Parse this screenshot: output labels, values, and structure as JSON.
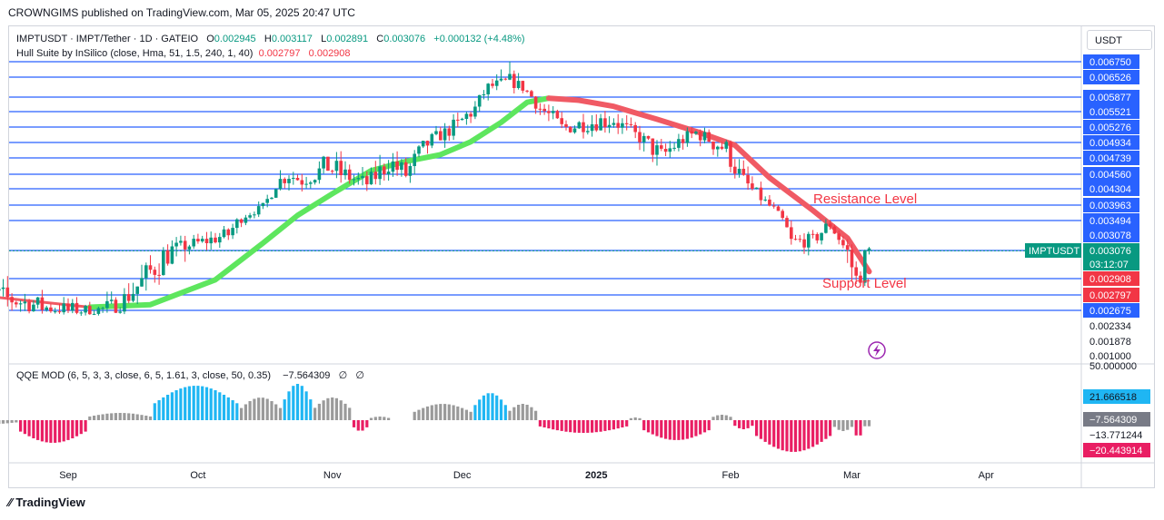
{
  "header": "CROWNGIMS published on TradingView.com, Mar 05, 2025 20:47 UTC",
  "legend": {
    "symbol": "IMPTUSDT · IMPT/Tether · 1D · GATEIO",
    "open_label": "O",
    "open": "0.002945",
    "high_label": "H",
    "high": "0.003117",
    "low_label": "L",
    "low": "0.002891",
    "close_label": "C",
    "close": "0.003076",
    "change": "+0.000132 (+4.48%)",
    "indicator": "Hull Suite by InSilico (close, Hma, 51, 1.5, 240, 1, 40)",
    "ind_val1": "0.002797",
    "ind_val2": "0.002908"
  },
  "qqe_legend": {
    "name": "QQE MOD (6, 5, 3, 3, close, 6, 5, 1.61, 3, close, 50, 0.35)",
    "value": "−7.564309",
    "extra1": "∅",
    "extra2": "∅"
  },
  "currency": "USDT",
  "footer": "TradingView",
  "colors": {
    "up": "#089981",
    "down": "#f23645",
    "level_line": "#2962ff",
    "hull_up": "#5ee65e",
    "hull_down": "#f05a64",
    "qqe_blue": "#1fb6f3",
    "qqe_gray": "#9a9a9a",
    "qqe_red": "#e91e63"
  },
  "chart_data": [
    {
      "type": "candlestick",
      "x_labels": [
        "Sep",
        "Oct",
        "Nov",
        "Dec",
        "2025",
        "Feb",
        "Mar",
        "Apr"
      ],
      "price_axis": [
        "0.006750",
        "0.006526",
        "0.005877",
        "0.005521",
        "0.005276",
        "0.004934",
        "0.004739",
        "0.004560",
        "0.004304",
        "0.003963",
        "0.003494",
        "0.003078",
        "0.003076",
        "0.002908",
        "0.002797",
        "0.002675",
        "0.002334",
        "0.001878",
        "0.001000"
      ],
      "horizontal_levels": [
        0.00675,
        0.006526,
        0.005877,
        0.005521,
        0.005276,
        0.004934,
        0.004739,
        0.00456,
        0.004304,
        0.003963,
        0.003494,
        0.003078,
        0.002908,
        0.002797,
        0.002675
      ],
      "annotations": [
        "Resistance Level",
        "Support Level"
      ],
      "last_price_tag": {
        "symbol": "IMPTUSDT",
        "price": "0.003076",
        "countdown": "03:12:07"
      },
      "indicator_tags": [
        "0.002908",
        "0.002797"
      ],
      "close_path": [
        [
          "2024-08-09",
          0.00285
        ],
        [
          "2024-08-20",
          0.00275
        ],
        [
          "2024-08-29",
          0.00268
        ],
        [
          "2024-09-05",
          0.00265
        ],
        [
          "2024-09-12",
          0.0027
        ],
        [
          "2024-09-20",
          0.00295
        ],
        [
          "2024-09-25",
          0.0031
        ],
        [
          "2024-10-01",
          0.00318
        ],
        [
          "2024-10-08",
          0.0033
        ],
        [
          "2024-10-12",
          0.00365
        ],
        [
          "2024-10-16",
          0.0039
        ],
        [
          "2024-10-19",
          0.0044
        ],
        [
          "2024-10-22",
          0.00455
        ],
        [
          "2024-10-25",
          0.00445
        ],
        [
          "2024-10-31",
          0.00465
        ],
        [
          "2024-11-05",
          0.0045
        ],
        [
          "2024-11-09",
          0.0044
        ],
        [
          "2024-11-14",
          0.0047
        ],
        [
          "2024-11-18",
          0.00455
        ],
        [
          "2024-11-24",
          0.005
        ],
        [
          "2024-11-30",
          0.0053
        ],
        [
          "2024-12-04",
          0.0056
        ],
        [
          "2024-12-07",
          0.0062
        ],
        [
          "2024-12-12",
          0.0064
        ],
        [
          "2024-12-15",
          0.0062
        ],
        [
          "2024-12-19",
          0.0056
        ],
        [
          "2024-12-24",
          0.00525
        ],
        [
          "2024-12-31",
          0.00535
        ],
        [
          "2025-01-05",
          0.0054
        ],
        [
          "2025-01-10",
          0.0051
        ],
        [
          "2025-01-16",
          0.00475
        ],
        [
          "2025-01-20",
          0.00495
        ],
        [
          "2025-01-24",
          0.00515
        ],
        [
          "2025-01-28",
          0.00495
        ],
        [
          "2025-01-31",
          0.00485
        ],
        [
          "2025-02-04",
          0.00445
        ],
        [
          "2025-02-07",
          0.0042
        ],
        [
          "2025-02-11",
          0.00385
        ],
        [
          "2025-02-15",
          0.0032
        ],
        [
          "2025-02-20",
          0.00322
        ],
        [
          "2025-02-24",
          0.00345
        ],
        [
          "2025-02-27",
          0.00315
        ],
        [
          "2025-03-02",
          0.0029
        ],
        [
          "2025-03-05",
          0.003076
        ]
      ],
      "hull_suite": {
        "up_segment": [
          [
            "2024-09-06",
            0.0027
          ],
          [
            "2024-09-20",
            0.00272
          ],
          [
            "2024-10-05",
            0.0029
          ],
          [
            "2024-10-16",
            0.00318
          ],
          [
            "2024-10-24",
            0.00365
          ],
          [
            "2024-11-01",
            0.0042
          ],
          [
            "2024-11-10",
            0.0046
          ],
          [
            "2024-11-18",
            0.0047
          ],
          [
            "2024-11-26",
            0.00478
          ],
          [
            "2024-12-03",
            0.00495
          ],
          [
            "2024-12-10",
            0.00535
          ],
          [
            "2024-12-16",
            0.00575
          ],
          [
            "2024-12-21",
            0.00585
          ]
        ],
        "down_segment": [
          [
            "2024-08-02",
            0.00282
          ],
          [
            "2024-08-15",
            0.00278
          ],
          [
            "2024-09-06",
            0.0027
          ],
          [
            "2024-12-21",
            0.00585
          ],
          [
            "2024-12-28",
            0.0058
          ],
          [
            "2025-01-05",
            0.00565
          ],
          [
            "2025-01-15",
            0.0054
          ],
          [
            "2025-01-25",
            0.00515
          ],
          [
            "2025-02-02",
            0.0049
          ],
          [
            "2025-02-10",
            0.0045
          ],
          [
            "2025-02-20",
            0.0038
          ],
          [
            "2025-02-28",
            0.00325
          ],
          [
            "2025-03-05",
            0.00295
          ]
        ]
      }
    },
    {
      "type": "bar",
      "name": "QQE MOD histogram",
      "axis_labels": [
        "50.000000",
        "21.666518",
        "−7.564309",
        "−13.771244",
        "−20.443914"
      ],
      "color_runs": [
        {
          "from": "2024-08-02",
          "to": "2024-08-20",
          "color": "gray",
          "peak": -5
        },
        {
          "from": "2024-08-21",
          "to": "2024-09-05",
          "color": "red",
          "peak": -25
        },
        {
          "from": "2024-09-06",
          "to": "2024-09-20",
          "color": "gray",
          "peak": 8
        },
        {
          "from": "2024-09-21",
          "to": "2024-10-10",
          "color": "blue",
          "peak": 38
        },
        {
          "from": "2024-10-11",
          "to": "2024-10-20",
          "color": "gray",
          "peak": 25
        },
        {
          "from": "2024-10-21",
          "to": "2024-10-27",
          "color": "blue",
          "peak": 40
        },
        {
          "from": "2024-10-28",
          "to": "2024-11-05",
          "color": "gray",
          "peak": 25
        },
        {
          "from": "2024-11-06",
          "to": "2024-11-09",
          "color": "red",
          "peak": -12
        },
        {
          "from": "2024-11-10",
          "to": "2024-11-14",
          "color": "gray",
          "peak": 4
        },
        {
          "from": "2024-11-20",
          "to": "2024-12-03",
          "color": "gray",
          "peak": 18
        },
        {
          "from": "2024-12-04",
          "to": "2024-12-11",
          "color": "blue",
          "peak": 30
        },
        {
          "from": "2024-12-12",
          "to": "2024-12-18",
          "color": "gray",
          "peak": 18
        },
        {
          "from": "2024-12-19",
          "to": "2025-01-08",
          "color": "red",
          "peak": -14
        },
        {
          "from": "2025-01-09",
          "to": "2025-01-11",
          "color": "gray",
          "peak": 3
        },
        {
          "from": "2025-01-12",
          "to": "2025-01-27",
          "color": "red",
          "peak": -22
        },
        {
          "from": "2025-01-28",
          "to": "2025-02-01",
          "color": "gray",
          "peak": 6
        },
        {
          "from": "2025-02-02",
          "to": "2025-02-06",
          "color": "red",
          "peak": -10
        },
        {
          "from": "2025-02-07",
          "to": "2025-02-24",
          "color": "red",
          "peak": -35
        },
        {
          "from": "2025-02-25",
          "to": "2025-03-01",
          "color": "gray",
          "peak": -12
        },
        {
          "from": "2025-03-02",
          "to": "2025-03-03",
          "color": "red",
          "peak": -20
        },
        {
          "from": "2025-03-04",
          "to": "2025-03-05",
          "color": "gray",
          "peak": -8
        }
      ]
    }
  ]
}
